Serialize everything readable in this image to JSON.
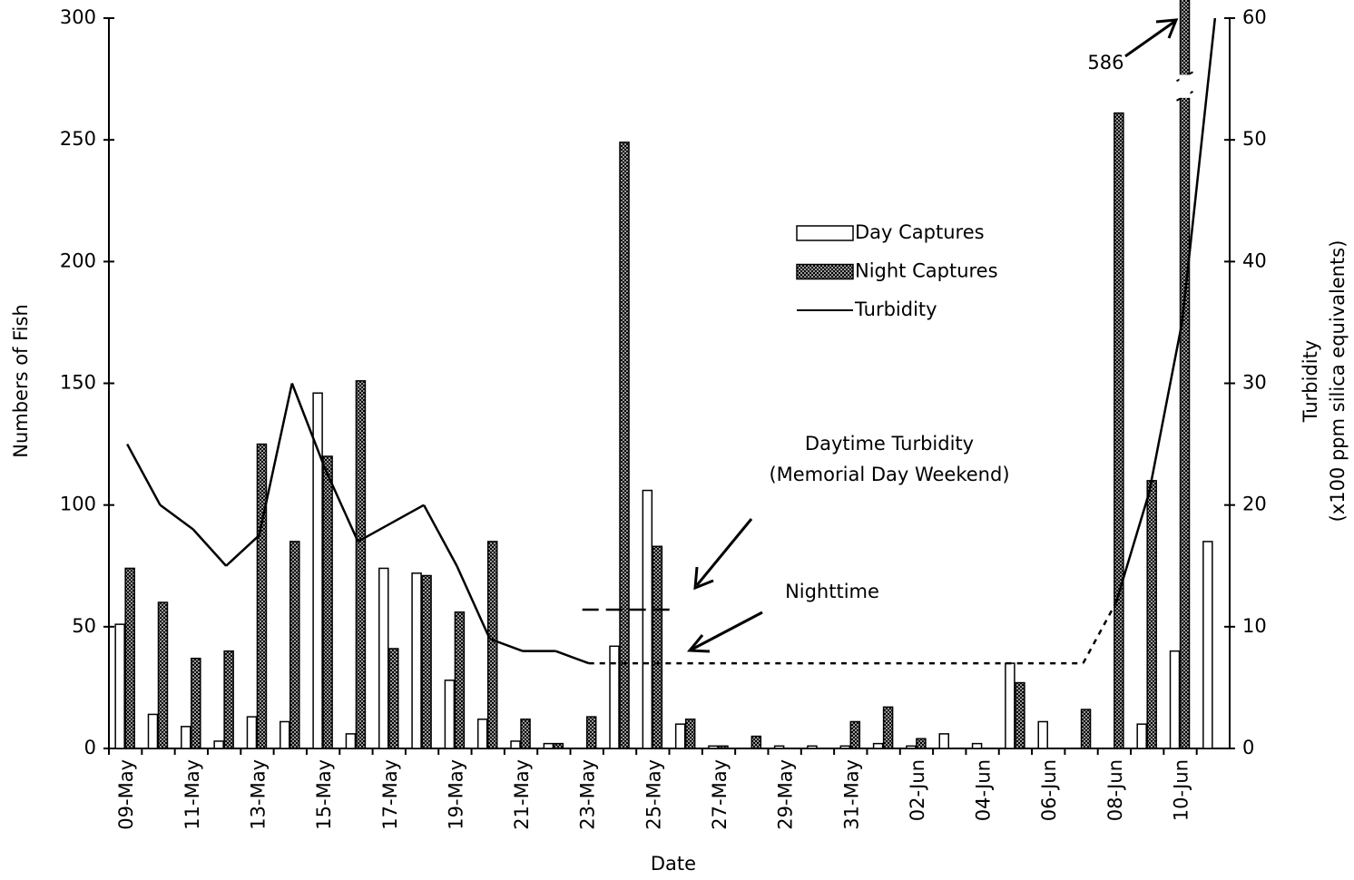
{
  "chart_data": {
    "type": "bar_line",
    "xlabel": "Date",
    "ylabel": "Numbers of Fish",
    "y2label": [
      "Turbidity",
      "(x100 ppm silica equivalents)"
    ],
    "categories": [
      "09-May",
      null,
      "11-May",
      null,
      "13-May",
      null,
      "15-May",
      null,
      "17-May",
      null,
      "19-May",
      null,
      "21-May",
      null,
      "23-May",
      null,
      "25-May",
      null,
      "27-May",
      null,
      "29-May",
      null,
      "31-May",
      null,
      "02-Jun",
      null,
      "04-Jun",
      null,
      "06-Jun",
      null,
      "08-Jun",
      null,
      "10-Jun",
      null
    ],
    "series": [
      {
        "name": "Day Captures",
        "type": "bar",
        "color": "#ffffff",
        "values": [
          51,
          14,
          9,
          3,
          13,
          11,
          146,
          6,
          74,
          72,
          28,
          12,
          3,
          2,
          0,
          42,
          106,
          10,
          1,
          0,
          1,
          1,
          1,
          2,
          1,
          6,
          2,
          35,
          11,
          0,
          0,
          10,
          40,
          85
        ]
      },
      {
        "name": "Night Captures",
        "type": "bar",
        "color": "#9a9a9a",
        "values": [
          74,
          60,
          37,
          40,
          125,
          85,
          120,
          151,
          41,
          71,
          56,
          85,
          12,
          2,
          13,
          249,
          83,
          12,
          1,
          5,
          0,
          0,
          11,
          17,
          4,
          0,
          0,
          27,
          0,
          16,
          261,
          110,
          586,
          0
        ],
        "value_labels": [
          null,
          null,
          null,
          null,
          null,
          null,
          null,
          null,
          null,
          null,
          null,
          null,
          null,
          null,
          null,
          null,
          null,
          null,
          null,
          null,
          null,
          null,
          null,
          null,
          null,
          null,
          null,
          null,
          null,
          null,
          null,
          null,
          "586",
          null
        ]
      },
      {
        "name": "Turbidity",
        "type": "line",
        "axis": "y2",
        "color": "#000000",
        "values": [
          25,
          20,
          18,
          15,
          17.5,
          30,
          23,
          17,
          18.5,
          20,
          15,
          9,
          8,
          8,
          7,
          7,
          7,
          7,
          7,
          7,
          7,
          7,
          7,
          7,
          7,
          7,
          7,
          7,
          7,
          7,
          12,
          21,
          35,
          60
        ],
        "segment_styles": [
          "solid",
          "solid",
          "solid",
          "solid",
          "solid",
          "solid",
          "solid",
          "solid",
          "solid",
          "solid",
          "solid",
          "solid",
          "solid",
          "solid",
          "dotted",
          "dotted",
          "dotted",
          "dotted",
          "dotted",
          "dotted",
          "dotted",
          "dotted",
          "dotted",
          "dotted",
          "dotted",
          "dotted",
          "dotted",
          "dotted",
          "dotted",
          "dotted",
          "solid",
          "solid",
          "solid"
        ]
      }
    ],
    "daytime_turbidity": {
      "label": [
        "Daytime Turbidity",
        "(Memorial Day Weekend)"
      ],
      "value": 11.4,
      "from": 14,
      "to": 16
    },
    "nighttime_label": "Nighttime",
    "ylim": [
      0,
      300
    ],
    "yticks": [
      0,
      50,
      100,
      150,
      200,
      250,
      300
    ],
    "y2lim": [
      0,
      60
    ],
    "y2ticks": [
      0,
      10,
      20,
      30,
      40,
      50,
      60
    ],
    "grid": false,
    "legend": "upper right"
  }
}
